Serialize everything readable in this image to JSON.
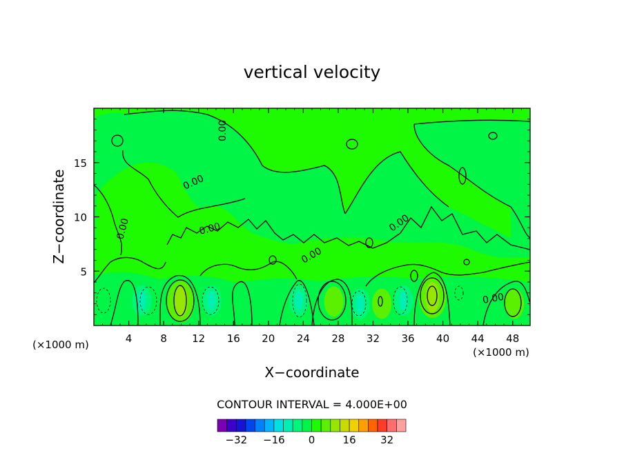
{
  "chart_data": {
    "type": "contour",
    "title": "vertical velocity",
    "xlabel": "X−coordinate",
    "ylabel": "Z−coordinate",
    "x_unit_left": "(×1000 m)",
    "x_unit_right": "(×1000 m)",
    "xlim": [
      0,
      50
    ],
    "ylim": [
      0,
      20
    ],
    "x_ticks": [
      4,
      8,
      12,
      16,
      20,
      24,
      28,
      32,
      36,
      40,
      44,
      48
    ],
    "y_ticks": [
      5,
      10,
      15
    ],
    "contour_labels": [
      "0.00",
      "0.00",
      "0.00",
      "0.00",
      "0.00",
      "0.00",
      "0.00"
    ],
    "contour_interval_text": "CONTOUR INTERVAL = 4.000E+00",
    "colorbar": {
      "levels": [
        -36,
        -32,
        -28,
        -24,
        -20,
        -16,
        -12,
        -8,
        -4,
        0,
        4,
        8,
        12,
        16,
        20,
        24,
        28,
        32,
        36
      ],
      "tick_labels": [
        "−32",
        "−16",
        "0",
        "16",
        "32"
      ],
      "tick_values": [
        -32,
        -16,
        0,
        16,
        32
      ],
      "colors": [
        "#7a00b4",
        "#3c00c8",
        "#1414d2",
        "#0046f0",
        "#0082ff",
        "#00b4ff",
        "#00e1e1",
        "#00f0b4",
        "#00f57d",
        "#00f546",
        "#1efa00",
        "#5af000",
        "#96e600",
        "#c8dc00",
        "#f0d200",
        "#ffa000",
        "#ff6400",
        "#ff3c28",
        "#ff6e6e",
        "#ffa0a0"
      ]
    },
    "features": [
      {
        "x": 10.0,
        "z": 2.2,
        "value": 12
      },
      {
        "x": 27.5,
        "z": 2.2,
        "value": 8
      },
      {
        "x": 38.8,
        "z": 2.6,
        "value": 12
      },
      {
        "x": 48.2,
        "z": 2.0,
        "value": 8
      },
      {
        "x": 5.5,
        "z": 2.3,
        "value": -8
      },
      {
        "x": 13.5,
        "z": 2.3,
        "value": -8
      },
      {
        "x": 23.5,
        "z": 2.3,
        "value": -8
      },
      {
        "x": 30.5,
        "z": 2.0,
        "value": -8
      },
      {
        "x": 35.5,
        "z": 2.3,
        "value": -8
      },
      {
        "x": 33.0,
        "z": 2.0,
        "value": 8
      }
    ]
  }
}
